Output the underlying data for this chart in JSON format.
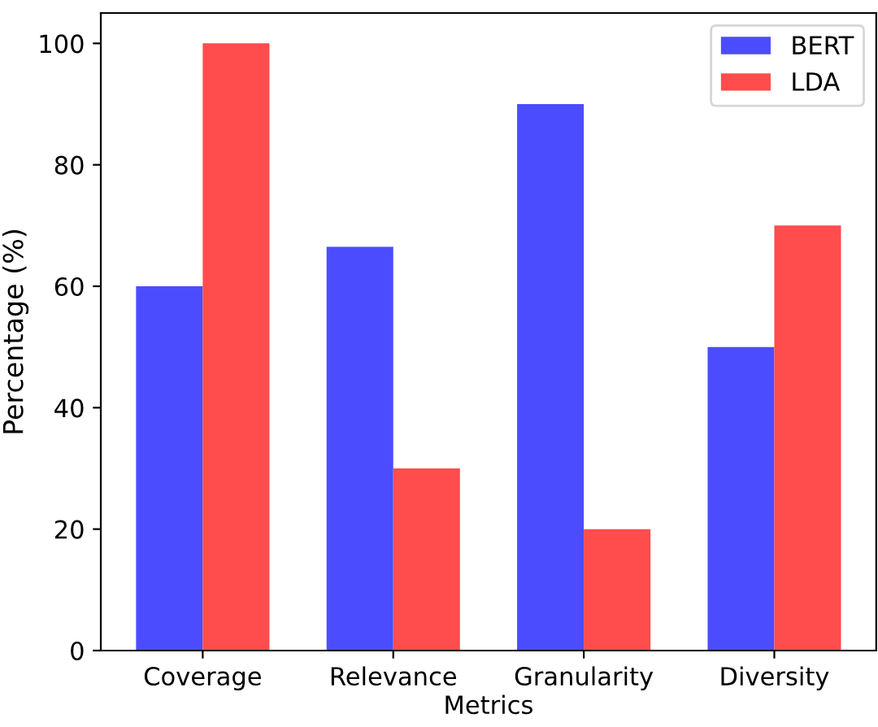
{
  "chart_data": {
    "type": "bar",
    "xlabel": "Metrics",
    "ylabel": "Percentage (%)",
    "categories": [
      "Coverage",
      "Relevance",
      "Granularity",
      "Diversity"
    ],
    "series": [
      {
        "name": "BERT",
        "color": "#4c4cff",
        "values": [
          60,
          66.5,
          90,
          50
        ]
      },
      {
        "name": "LDA",
        "color": "#ff4c4c",
        "values": [
          100,
          30,
          20,
          70
        ]
      }
    ],
    "ylim": [
      0,
      105
    ],
    "yticks": [
      0,
      20,
      40,
      60,
      80,
      100
    ],
    "legend": "top right",
    "grid": false
  }
}
